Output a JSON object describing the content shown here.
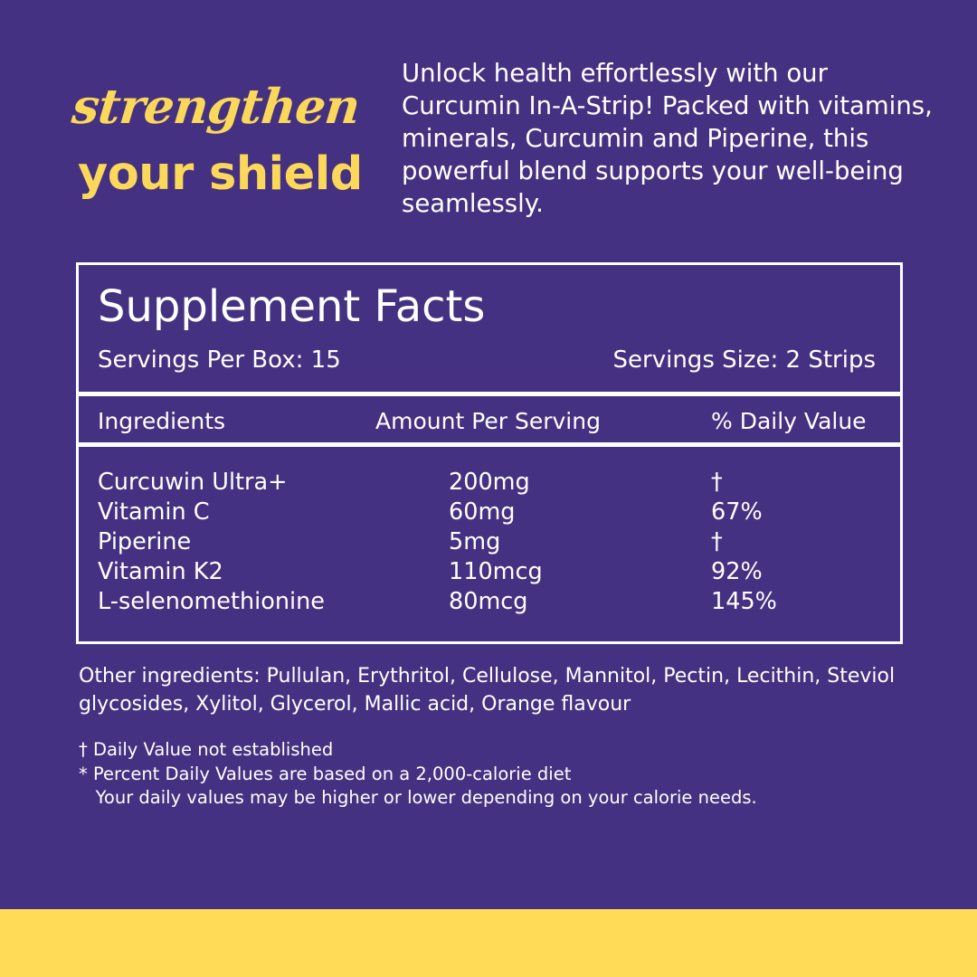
{
  "headline": {
    "script_text": "strengthen",
    "bold_text": "your shield"
  },
  "intro_text": "Unlock health effortlessly with our Curcumin In-A-Strip! Packed with vitamins, minerals, Curcumin and Piperine, this powerful blend supports your well-being seamlessly.",
  "facts": {
    "title": "Supplement Facts",
    "servings_per_box": "Servings Per Box: 15",
    "serving_size": "Servings Size: 2 Strips",
    "columns": [
      "Ingredients",
      "Amount Per Serving",
      "% Daily Value"
    ],
    "rows": [
      {
        "ingredient": "Curcuwin Ultra+",
        "amount": "200mg",
        "daily_value": "†"
      },
      {
        "ingredient": "Vitamin C",
        "amount": "60mg",
        "daily_value": "67%"
      },
      {
        "ingredient": "Piperine",
        "amount": "5mg",
        "daily_value": "†"
      },
      {
        "ingredient": "Vitamin K2",
        "amount": "110mcg",
        "daily_value": "92%"
      },
      {
        "ingredient": "L-selenomethionine",
        "amount": "80mcg",
        "daily_value": "145%"
      }
    ]
  },
  "other_ingredients": "Other ingredients: Pullulan, Erythritol, Cellulose, Mannitol, Pectin, Lecithin, Steviol glycosides, Xylitol, Glycerol, Mallic acid, Orange flavour",
  "footnotes": [
    "† Daily Value not established",
    "* Percent Daily Values are based on a 2,000-calorie diet",
    "   Your daily values may be higher or lower depending on your calorie needs."
  ],
  "colors": {
    "background": "#453181",
    "accent_yellow": "#fbd75a",
    "band_yellow": "#ffdb58",
    "text": "#ffffff"
  }
}
